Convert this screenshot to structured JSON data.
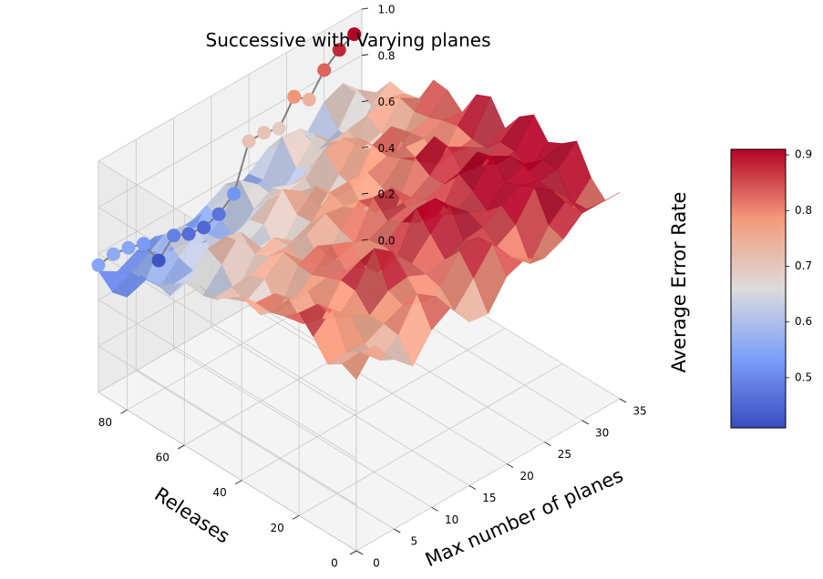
{
  "chart_data": {
    "type": "surface3d",
    "title": "Successive with Varying planes",
    "xlabel": "Releases",
    "ylabel": "Max number of planes",
    "zlabel": "Average Error Rate",
    "x_ticks": [
      "0",
      "20",
      "40",
      "60",
      "80"
    ],
    "y_ticks": [
      "0",
      "5",
      "10",
      "15",
      "20",
      "25",
      "30",
      "35"
    ],
    "z_ticks": [
      "0.0",
      "0.2",
      "0.4",
      "0.6",
      "0.8",
      "1.0"
    ],
    "xlim": [
      0,
      90
    ],
    "ylim": [
      0,
      35
    ],
    "zlim": [
      0,
      1
    ],
    "grid": true,
    "colormap": "coolwarm",
    "colorbar": {
      "ticks": [
        "0.5",
        "0.6",
        "0.7",
        "0.8",
        "0.9"
      ],
      "range": [
        0.41,
        0.91
      ],
      "placement": "right"
    },
    "scatter_series": {
      "x": [
        90,
        90,
        90,
        90,
        90,
        90,
        90,
        90,
        90,
        90,
        90,
        90,
        90,
        90,
        90,
        90,
        90,
        90
      ],
      "y": [
        0,
        2,
        4,
        6,
        8,
        10,
        12,
        14,
        16,
        18,
        20,
        22,
        24,
        26,
        28,
        30,
        32,
        34
      ],
      "z": [
        0.55,
        0.56,
        0.55,
        0.53,
        0.42,
        0.49,
        0.46,
        0.45,
        0.47,
        0.52,
        0.71,
        0.71,
        0.69,
        0.79,
        0.74,
        0.83,
        0.88,
        0.91
      ],
      "line_color": "#808080"
    },
    "surface_row_profile": {
      "x": [
        0,
        10,
        20,
        30,
        40,
        50,
        60,
        70,
        80,
        90
      ],
      "z": [
        0.74,
        0.78,
        0.84,
        0.8,
        0.76,
        0.72,
        0.69,
        0.64,
        0.58,
        0.52
      ]
    },
    "surface_col_profile": {
      "y": [
        0,
        5,
        10,
        15,
        20,
        25,
        30,
        35
      ],
      "z": [
        -0.03,
        -0.01,
        0.01,
        0.03,
        0.06,
        0.09,
        0.11,
        0.13
      ]
    },
    "colors": {
      "pane_left": "#eaeaea",
      "pane_back": "#f1f1f1",
      "pane_floor": "#f4f4f4",
      "grid": "#c8c8c8"
    }
  }
}
